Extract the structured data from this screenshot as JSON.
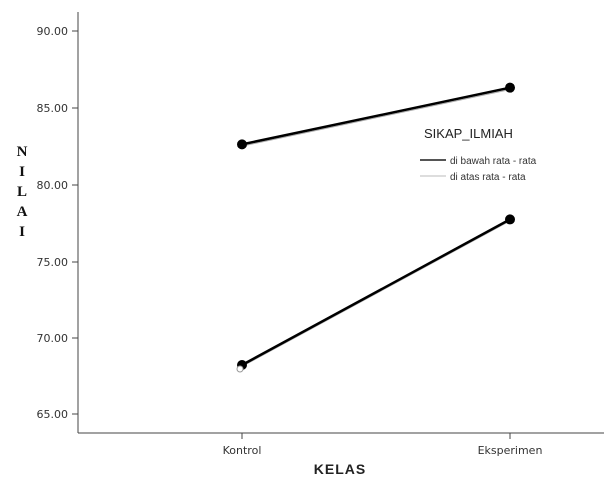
{
  "chart_data": {
    "type": "line",
    "categories": [
      "Kontrol",
      "Eksperimen"
    ],
    "xlabel": "KELAS",
    "ylabel": "NILAI",
    "ylim": [
      63.5,
      92.5
    ],
    "yticks": [
      "90.00",
      "85.00",
      "80.00",
      "75.00",
      "70.00",
      "65.00"
    ],
    "legend": {
      "title": "SIKAP_ILMIAH",
      "entries": [
        "di bawah rata - rata",
        "di atas rata - rata"
      ],
      "placement": "right"
    },
    "series": [
      {
        "name": "di bawah rata - rata",
        "values": [
          68.2,
          77.7
        ],
        "color": "#000000"
      },
      {
        "name": "di atas rata - rata",
        "values": [
          82.6,
          86.3
        ],
        "color": "#000000"
      }
    ],
    "grid": false
  }
}
